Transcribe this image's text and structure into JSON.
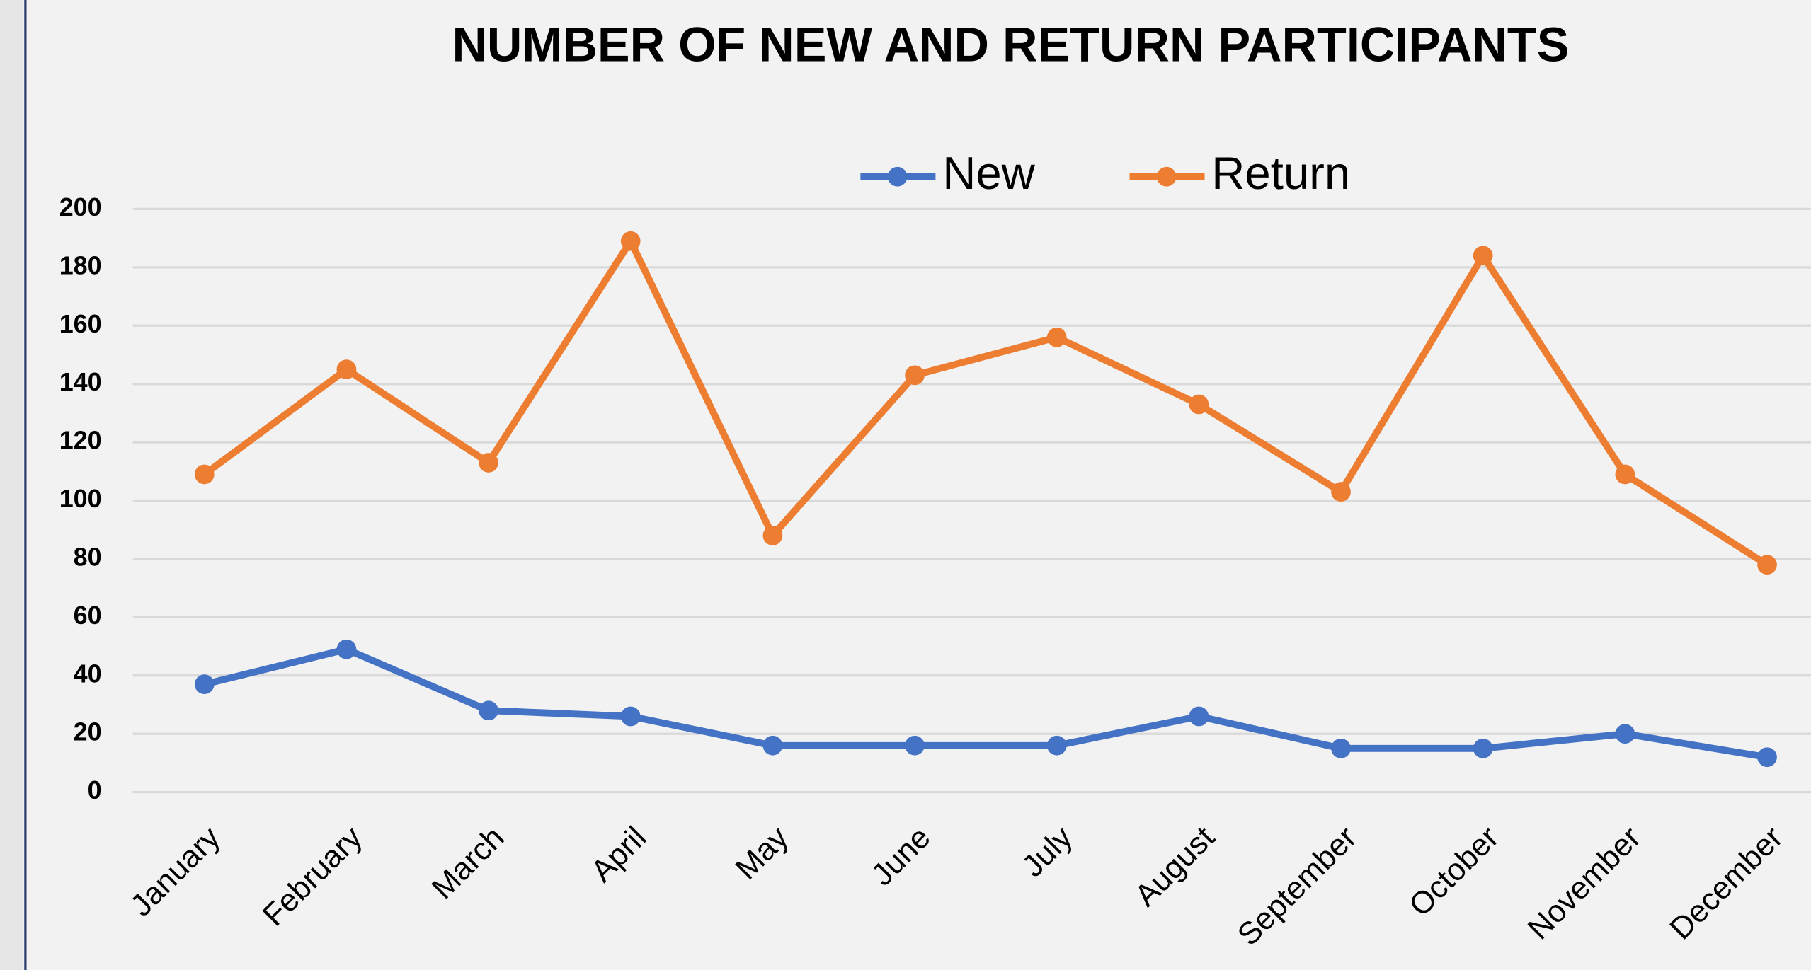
{
  "chart_data": {
    "type": "line",
    "title": "NUMBER OF NEW AND RETURN PARTICIPANTS",
    "categories": [
      "January",
      "February",
      "March",
      "April",
      "May",
      "June",
      "July",
      "August",
      "September",
      "October",
      "November",
      "December"
    ],
    "series": [
      {
        "name": "New",
        "color": "#4472c4",
        "values": [
          37,
          49,
          28,
          26,
          16,
          16,
          16,
          26,
          15,
          15,
          20,
          12
        ]
      },
      {
        "name": "Return",
        "color": "#ed7d31",
        "values": [
          109,
          145,
          113,
          189,
          88,
          143,
          156,
          133,
          103,
          184,
          109,
          78
        ]
      }
    ],
    "ylim": [
      0,
      200
    ],
    "yticks": [
      0,
      20,
      40,
      60,
      80,
      100,
      120,
      140,
      160,
      180,
      200
    ],
    "grid": true,
    "legend": "top"
  }
}
